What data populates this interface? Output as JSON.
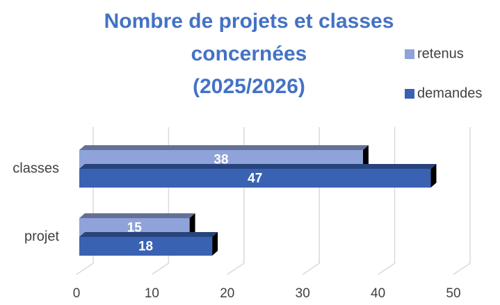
{
  "chart_data": {
    "type": "bar3d_horizontal",
    "title": "Nombre de projets et classes concernées (2025/2026)",
    "title_lines": [
      "Nombre de projets et classes",
      "concernées",
      "(2025/2026)"
    ],
    "categories": [
      "classes",
      "projet"
    ],
    "series": [
      {
        "name": "retenus",
        "color": "#8fa2d9",
        "values": [
          38,
          15
        ]
      },
      {
        "name": "demandes",
        "color": "#3a62b3",
        "values": [
          47,
          18
        ]
      }
    ],
    "xlim": [
      0,
      50
    ],
    "xticks": [
      0,
      10,
      20,
      30,
      40,
      50
    ],
    "grid": true,
    "legend": "right"
  }
}
